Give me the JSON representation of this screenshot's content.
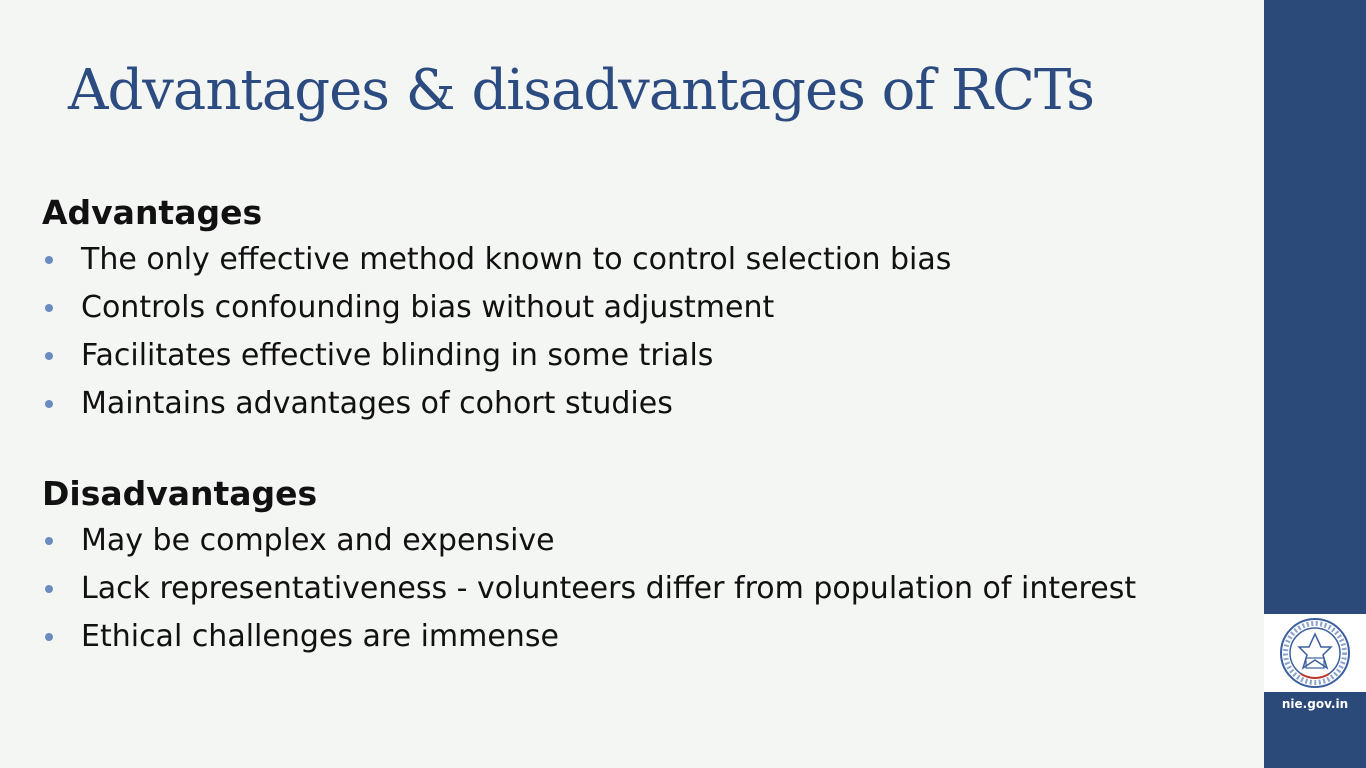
{
  "slide": {
    "title": "Advantages & disadvantages of RCTs",
    "sections": [
      {
        "heading": "Advantages",
        "items": [
          "The only effective method known to control selection bias",
          "Controls confounding bias without adjustment",
          "Facilitates effective blinding in some trials",
          "Maintains advantages of cohort studies"
        ]
      },
      {
        "heading": "Disadvantages",
        "items": [
          "May be complex and expensive",
          "Lack representativeness - volunteers differ from population of interest",
          "Ethical challenges are immense"
        ]
      }
    ]
  },
  "sidebar": {
    "logo_icon": "institution-seal-icon",
    "url": "nie.gov.in"
  },
  "colors": {
    "title": "#2c4b80",
    "bullet": "#6a8cc0",
    "sidebar": "#2b4a7a"
  }
}
